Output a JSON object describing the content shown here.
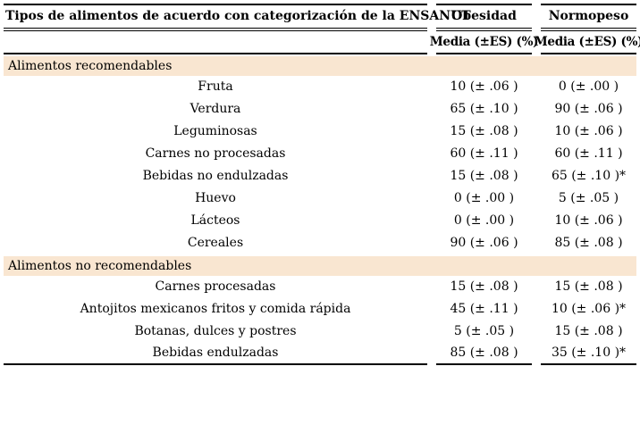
{
  "table": {
    "col1_header": "Tipos de alimentos de acuerdo con categorización de la ENSANUT",
    "columns": [
      {
        "label": "Obesidad",
        "subheader": "Media (±ES) (%)"
      },
      {
        "label": "Normopeso",
        "subheader": "Media (±ES) (%)"
      }
    ],
    "colors": {
      "section_band_background": "#f9e6d1",
      "rule": "#000000",
      "text": "#000000"
    },
    "sections": [
      {
        "label": "Alimentos recomendables",
        "rows": [
          {
            "name": "Fruta",
            "obesidad": "10 (± .06 )",
            "normopeso": "0 (± .00 )"
          },
          {
            "name": "Verdura",
            "obesidad": "65 (± .10 )",
            "normopeso": "90 (± .06 )"
          },
          {
            "name": "Leguminosas",
            "obesidad": "15 (± .08 )",
            "normopeso": "10 (± .06 )"
          },
          {
            "name": "Carnes no procesadas",
            "obesidad": "60 (± .11 )",
            "normopeso": "60 (± .11 )"
          },
          {
            "name": "Bebidas no endulzadas",
            "obesidad": "15 (± .08 )",
            "normopeso": "65 (± .10 )*"
          },
          {
            "name": "Huevo",
            "obesidad": "0 (± .00 )",
            "normopeso": "5 (± .05 )"
          },
          {
            "name": "Lácteos",
            "obesidad": "0 (± .00 )",
            "normopeso": "10 (± .06 )"
          },
          {
            "name": "Cereales",
            "obesidad": "90 (± .06 )",
            "normopeso": "85 (± .08 )"
          }
        ]
      },
      {
        "label": "Alimentos no recomendables",
        "rows": [
          {
            "name": "Carnes procesadas",
            "obesidad": "15 (± .08 )",
            "normopeso": "15 (± .08 )"
          },
          {
            "name": "Antojitos mexicanos fritos y comida rápida",
            "obesidad": "45 (± .11 )",
            "normopeso": "10 (± .06 )*"
          },
          {
            "name": "Botanas, dulces y postres",
            "obesidad": "5 (± .05 )",
            "normopeso": "15 (± .08 )"
          },
          {
            "name": "Bebidas endulzadas",
            "obesidad": "85 (± .08 )",
            "normopeso": "35 (± .10 )*"
          }
        ]
      }
    ]
  }
}
